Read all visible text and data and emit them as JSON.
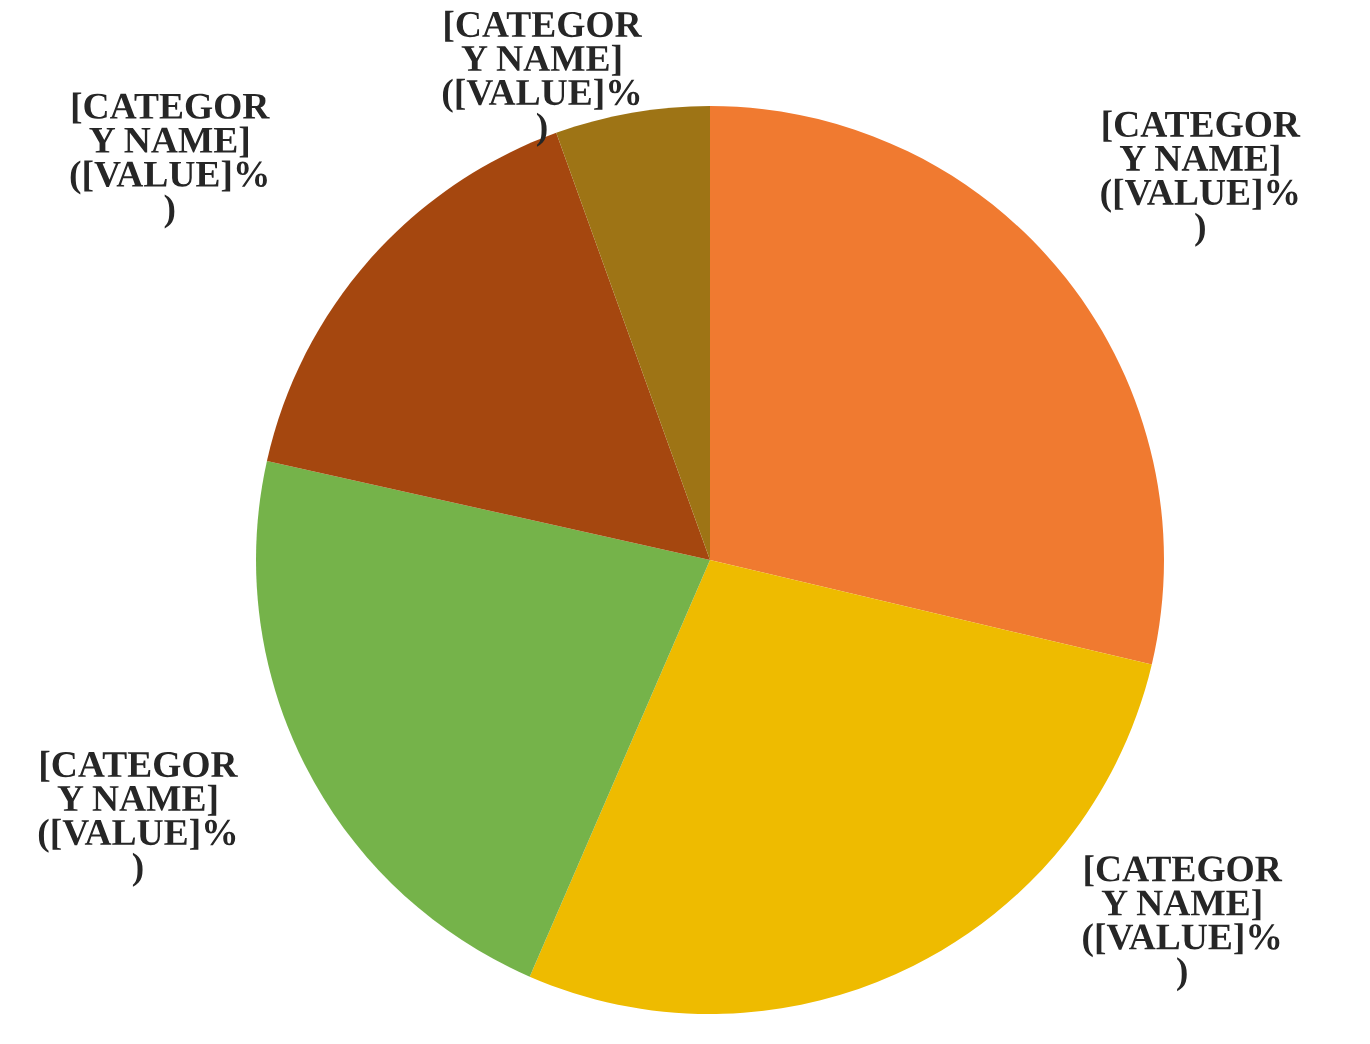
{
  "chart_data": {
    "type": "pie",
    "categories": [
      "[CATEGOR\nY NAME]\n([VALUE]%\n)",
      "[CATEGOR\nY NAME]\n([VALUE]%\n)",
      "[CATEGOR\nY NAME]\n([VALUE]%\n)",
      "[CATEGOR\nY NAME]\n([VALUE]%\n)",
      "[CATEGOR\nY NAME]\n([VALUE]%\n)"
    ],
    "values": [
      28.7,
      27.8,
      22,
      16,
      5.5
    ],
    "colors": [
      "#f07a30",
      "#eebb00",
      "#75b34a",
      "#a5470f",
      "#9e7415"
    ]
  }
}
